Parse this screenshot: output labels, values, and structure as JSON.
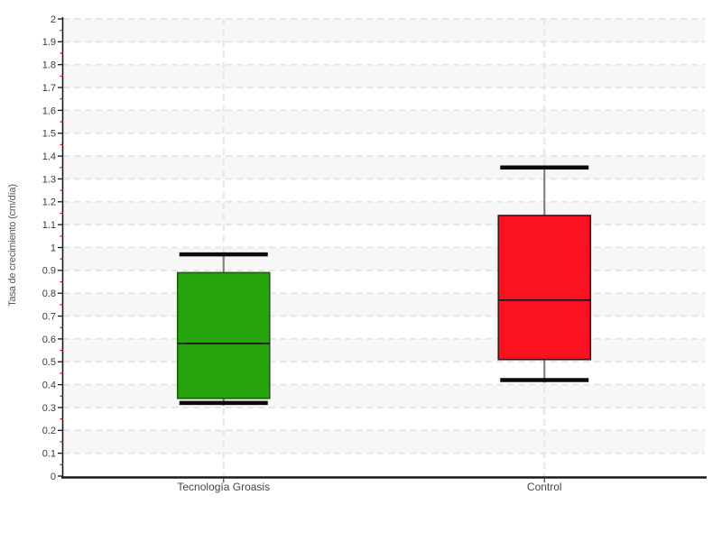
{
  "chart_data": {
    "type": "box",
    "title": "",
    "xlabel": "",
    "ylabel": "Tasa de crecimiento (cm/día)",
    "ylim": [
      0,
      2
    ],
    "ytick_major_step": 0.1,
    "ytick_minor_step": 0.05,
    "y_tick_labels": [
      "0",
      "0.1",
      "0.2",
      "0.3",
      "0.4",
      "0.5",
      "0.6",
      "0.7",
      "0.8",
      "0.9",
      "1",
      "1.1",
      "1.2",
      "1.3",
      "1.4",
      "1.5",
      "1.6",
      "1.7",
      "1.8",
      "1.9",
      "2"
    ],
    "grid": "dashed horizontal lines every 0.1 and dashed vertical line at each category; alternating shaded bands",
    "legend": "none",
    "categories": [
      "Tecnología Groasis",
      "Control"
    ],
    "series": [
      {
        "name": "Tecnología Groasis",
        "min": 0.32,
        "q1": 0.34,
        "median": 0.58,
        "q3": 0.89,
        "max": 0.97,
        "fill": "#27a30d",
        "border": "#1b5e12"
      },
      {
        "name": "Control",
        "min": 0.42,
        "q1": 0.51,
        "median": 0.77,
        "q3": 1.14,
        "max": 1.35,
        "fill": "#fb1220",
        "border": "#3c1016"
      }
    ],
    "colors": {
      "band": "#f7f7f7",
      "grid": "#e5e5e5",
      "axis": "#1a1a1a",
      "tick_label": "#3a3a3a",
      "category_label": "#444444",
      "minor_tick": "#ee0000",
      "whisker_stem": "#7a7a7a",
      "whisker_cap": "#0b0b0b",
      "median": "#111111",
      "background": "#ffffff"
    }
  }
}
